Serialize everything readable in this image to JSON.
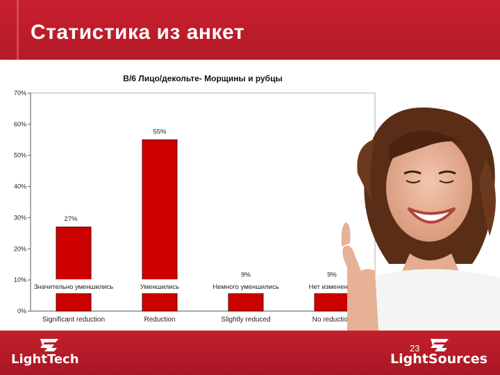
{
  "slide": {
    "title": "Статистика из анкет",
    "page_number": "23"
  },
  "logos": {
    "left": "LightTech",
    "right": "LightSources"
  },
  "colors": {
    "header": "#c21e2c",
    "bar_fill": "#cc0000",
    "bar_stroke": "#5a0000"
  },
  "chart_data": {
    "type": "bar",
    "title": "B/6 Лицо/декольте- Морщины и рубцы",
    "categories": [
      "Значительно уменшились",
      "Уменшились",
      "Немного уменшились",
      "Нет изменений"
    ],
    "categories_secondary": [
      "Significant reduction",
      "Reduction",
      "Slightly reduced",
      "No reduction"
    ],
    "values": [
      27,
      55,
      9,
      9
    ],
    "data_labels": [
      "27%",
      "55%",
      "9%",
      "9%"
    ],
    "ylim": [
      0,
      70
    ],
    "yticks": [
      0,
      10,
      20,
      30,
      40,
      50,
      60,
      70
    ],
    "ytick_labels": [
      "0%",
      "10%",
      "20%",
      "30%",
      "40%",
      "50%",
      "60%",
      "70%"
    ],
    "xlabel": "",
    "ylabel": "",
    "grid": false,
    "legend": "none"
  }
}
